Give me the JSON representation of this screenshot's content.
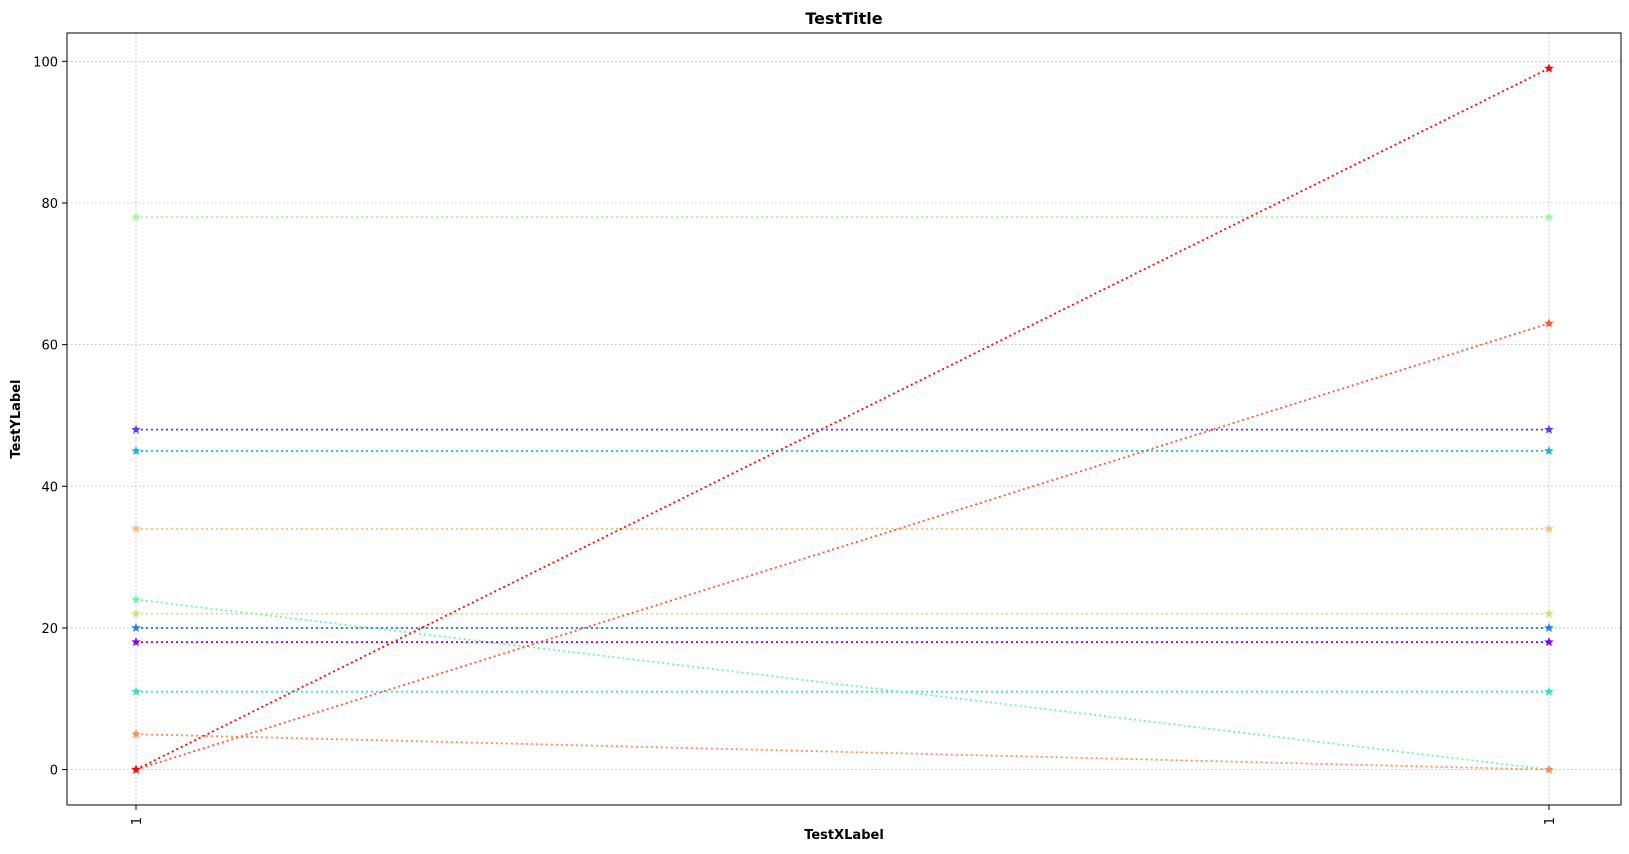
{
  "chart_data": {
    "type": "line",
    "title": "TestTitle",
    "xlabel": "TestXLabel",
    "ylabel": "TestYLabel",
    "categories": [
      "1",
      "1"
    ],
    "ylim": [
      -5,
      104
    ],
    "yticks": [
      "0",
      "20",
      "40",
      "60",
      "80",
      "100"
    ],
    "ytick_values": [
      0,
      20,
      40,
      60,
      80,
      100
    ],
    "grid": true,
    "legend": false,
    "line_style": "dotted",
    "marker": "star",
    "series": [
      {
        "color": "#8000ff",
        "values": [
          18,
          18
        ]
      },
      {
        "color": "#5b3df9",
        "values": [
          48,
          48
        ]
      },
      {
        "color": "#2a7fee",
        "values": [
          20,
          20
        ]
      },
      {
        "color": "#1bb6de",
        "values": [
          45,
          45
        ]
      },
      {
        "color": "#38e0c8",
        "values": [
          11,
          11
        ]
      },
      {
        "color": "#6bf6ad",
        "values": [
          24,
          0
        ]
      },
      {
        "color": "#9cf89a",
        "values": [
          78,
          78
        ]
      },
      {
        "color": "#cfe287",
        "values": [
          22,
          22
        ]
      },
      {
        "color": "#ffbf72",
        "values": [
          34,
          34
        ]
      },
      {
        "color": "#ff8c5a",
        "values": [
          5,
          0
        ]
      },
      {
        "color": "#ff5533",
        "values": [
          0,
          63
        ]
      },
      {
        "color": "#ff0000",
        "values": [
          0,
          99
        ]
      }
    ]
  }
}
